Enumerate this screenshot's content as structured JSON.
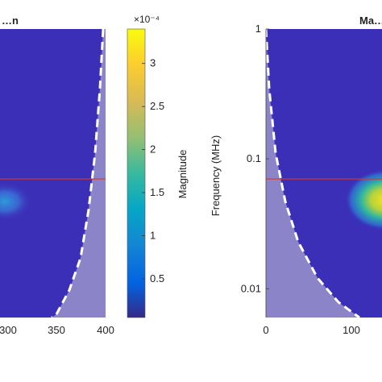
{
  "colors": {
    "background_field": "#3b2fb8",
    "cone_of_influence_fill": "#8b84c8",
    "coi_line": "#ffffff",
    "reference_line": "#d23a2a",
    "hotspot_core": "#f5e51b",
    "hotspot_mid": "#2fb7a0",
    "hotspot_edge": "#2c7fd6"
  },
  "chart_data": [
    {
      "type": "heatmap",
      "title": "…n",
      "x_tick_labels": [
        "300",
        "350",
        "400"
      ],
      "xlim": [
        250,
        400
      ],
      "scale": "log",
      "ylim": [
        0.006,
        1
      ],
      "reference_line_frequency": 0.07,
      "cone_of_influence_edge": "dashed",
      "hotspots": [
        {
          "x": 255,
          "y": 0.07,
          "magnitude": 6e-05
        }
      ]
    },
    {
      "type": "colorbar",
      "label": "Magnitude",
      "multiplier": "×10⁻⁴",
      "range": [
        0.05,
        3.4
      ],
      "ticks": [
        "0.5",
        "1",
        "1.5",
        "2",
        "2.5",
        "3"
      ],
      "tick_values": [
        0.5,
        1,
        1.5,
        2,
        2.5,
        3
      ],
      "colormap": "parula"
    },
    {
      "type": "heatmap",
      "title": "Ma…",
      "ylabel": "Frequency (MHz)",
      "y_tick_labels": [
        "1",
        "0.1",
        "0.01"
      ],
      "y_tick_values": [
        1,
        0.1,
        0.01
      ],
      "scale": "log",
      "ylim": [
        0.006,
        1
      ],
      "x_tick_labels": [
        "0",
        "100"
      ],
      "x_tick_values": [
        0,
        100
      ],
      "xlim": [
        0,
        150
      ],
      "reference_line_frequency": 0.07,
      "cone_of_influence_edge": "dashed",
      "hotspots": [
        {
          "x": 150,
          "y": 0.07,
          "magnitude": 0.00033
        }
      ]
    }
  ]
}
